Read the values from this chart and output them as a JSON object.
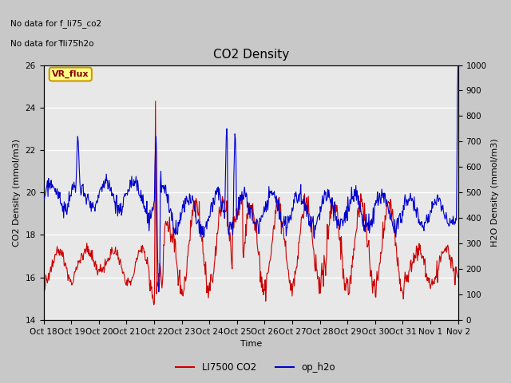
{
  "title": "CO2 Density",
  "xlabel": "Time",
  "ylabel_left": "CO2 Density (mmol/m3)",
  "ylabel_right": "H2O Density (mmol/m3)",
  "ylim_left": [
    14,
    26
  ],
  "ylim_right": [
    0,
    1000
  ],
  "yticks_left": [
    14,
    16,
    18,
    20,
    22,
    24,
    26
  ],
  "yticks_right": [
    0,
    100,
    200,
    300,
    400,
    500,
    600,
    700,
    800,
    900,
    1000
  ],
  "xtick_labels": [
    "Oct 18",
    "Oct 19",
    "Oct 20",
    "Oct 21",
    "Oct 22",
    "Oct 23",
    "Oct 24",
    "Oct 25",
    "Oct 26",
    "Oct 27",
    "Oct 28",
    "Oct 29",
    "Oct 30",
    "Oct 31",
    "Nov 1",
    "Nov 2"
  ],
  "color_co2": "#cc0000",
  "color_h2o": "#0000cc",
  "label_co2": "LI7500 CO2",
  "label_h2o": "op_h2o",
  "no_data_text1": "No data for f_li75_co2",
  "no_data_text2": "No data for f̅li75̅h2o",
  "vr_flux_label": "VR_flux",
  "vr_flux_bg": "#ffff99",
  "vr_flux_border": "#996600",
  "plot_bg": "#e0e0e0",
  "fig_bg": "#cccccc",
  "grid_color": "#ffffff",
  "title_fontsize": 11,
  "axis_fontsize": 8,
  "tick_fontsize": 7.5
}
